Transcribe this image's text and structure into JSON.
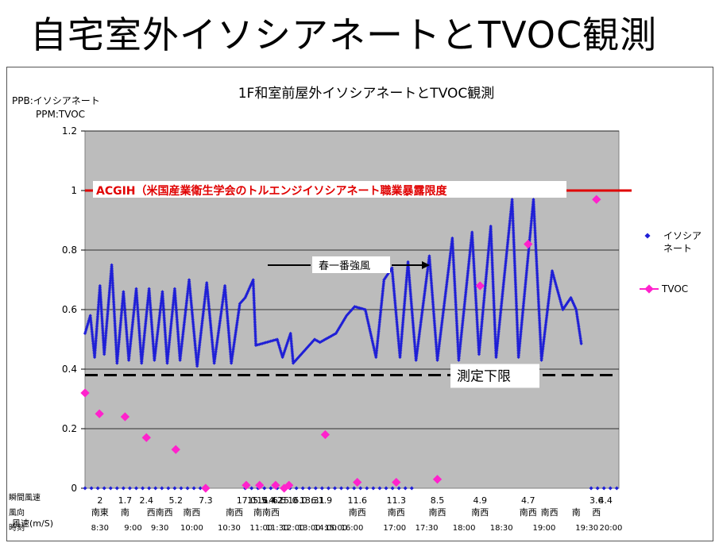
{
  "slide": {
    "title": "自宅室外イソシアネートとTVOC観測"
  },
  "chart_data": {
    "type": "scatter",
    "title": "1F和室前屋外イソシアネートとTVOC観測",
    "ylabel_line1": "PPB:イソシアネート",
    "ylabel_line2": "PPM:TVOC",
    "ylim": [
      0,
      1.2
    ],
    "yticks": [
      "0",
      "0.2",
      "0.4",
      "0.6",
      "0.8",
      "1",
      "1.2"
    ],
    "grid": true,
    "legend_position": "right",
    "series": [
      {
        "name": "イソシアネート",
        "color": "#1f1fd6",
        "marker": "diamond-small",
        "id": "iso"
      },
      {
        "name": "TVOC",
        "color": "#ff22cc",
        "marker": "diamond-line",
        "id": "tvoc"
      }
    ],
    "tvoc_points": [
      {
        "x": 0.0,
        "y": 0.32
      },
      {
        "x": 0.027,
        "y": 0.25
      },
      {
        "x": 0.075,
        "y": 0.24
      },
      {
        "x": 0.115,
        "y": 0.17
      },
      {
        "x": 0.17,
        "y": 0.13
      },
      {
        "x": 0.226,
        "y": 0.0
      },
      {
        "x": 0.302,
        "y": 0.01
      },
      {
        "x": 0.327,
        "y": 0.01
      },
      {
        "x": 0.357,
        "y": 0.01
      },
      {
        "x": 0.373,
        "y": 0.0
      },
      {
        "x": 0.382,
        "y": 0.01
      },
      {
        "x": 0.45,
        "y": 0.18
      },
      {
        "x": 0.51,
        "y": 0.02
      },
      {
        "x": 0.583,
        "y": 0.02
      },
      {
        "x": 0.66,
        "y": 0.03
      },
      {
        "x": 0.74,
        "y": 0.68
      },
      {
        "x": 0.83,
        "y": 0.82
      },
      {
        "x": 0.958,
        "y": 0.97
      }
    ],
    "iso_profile": [
      {
        "x": 0.0,
        "y": 0.52
      },
      {
        "x": 0.01,
        "y": 0.58
      },
      {
        "x": 0.018,
        "y": 0.44
      },
      {
        "x": 0.028,
        "y": 0.68
      },
      {
        "x": 0.036,
        "y": 0.45
      },
      {
        "x": 0.05,
        "y": 0.75
      },
      {
        "x": 0.06,
        "y": 0.42
      },
      {
        "x": 0.072,
        "y": 0.66
      },
      {
        "x": 0.082,
        "y": 0.43
      },
      {
        "x": 0.096,
        "y": 0.67
      },
      {
        "x": 0.106,
        "y": 0.42
      },
      {
        "x": 0.12,
        "y": 0.67
      },
      {
        "x": 0.13,
        "y": 0.43
      },
      {
        "x": 0.145,
        "y": 0.66
      },
      {
        "x": 0.154,
        "y": 0.42
      },
      {
        "x": 0.168,
        "y": 0.67
      },
      {
        "x": 0.178,
        "y": 0.43
      },
      {
        "x": 0.195,
        "y": 0.7
      },
      {
        "x": 0.21,
        "y": 0.41
      },
      {
        "x": 0.228,
        "y": 0.69
      },
      {
        "x": 0.242,
        "y": 0.42
      },
      {
        "x": 0.262,
        "y": 0.68
      },
      {
        "x": 0.274,
        "y": 0.42
      },
      {
        "x": 0.29,
        "y": 0.62
      },
      {
        "x": 0.3,
        "y": 0.64
      },
      {
        "x": 0.315,
        "y": 0.7
      },
      {
        "x": 0.32,
        "y": 0.48
      },
      {
        "x": 0.36,
        "y": 0.5
      },
      {
        "x": 0.37,
        "y": 0.44
      },
      {
        "x": 0.385,
        "y": 0.52
      },
      {
        "x": 0.39,
        "y": 0.42
      },
      {
        "x": 0.43,
        "y": 0.5
      },
      {
        "x": 0.44,
        "y": 0.49
      },
      {
        "x": 0.47,
        "y": 0.52
      },
      {
        "x": 0.49,
        "y": 0.58
      },
      {
        "x": 0.505,
        "y": 0.61
      },
      {
        "x": 0.525,
        "y": 0.6
      },
      {
        "x": 0.545,
        "y": 0.44
      },
      {
        "x": 0.56,
        "y": 0.7
      },
      {
        "x": 0.575,
        "y": 0.74
      },
      {
        "x": 0.59,
        "y": 0.44
      },
      {
        "x": 0.605,
        "y": 0.76
      },
      {
        "x": 0.62,
        "y": 0.43
      },
      {
        "x": 0.645,
        "y": 0.78
      },
      {
        "x": 0.66,
        "y": 0.43
      },
      {
        "x": 0.688,
        "y": 0.84
      },
      {
        "x": 0.7,
        "y": 0.43
      },
      {
        "x": 0.725,
        "y": 0.86
      },
      {
        "x": 0.738,
        "y": 0.45
      },
      {
        "x": 0.76,
        "y": 0.88
      },
      {
        "x": 0.77,
        "y": 0.44
      },
      {
        "x": 0.8,
        "y": 0.97
      },
      {
        "x": 0.812,
        "y": 0.44
      },
      {
        "x": 0.84,
        "y": 0.97
      },
      {
        "x": 0.855,
        "y": 0.43
      },
      {
        "x": 0.875,
        "y": 0.73
      },
      {
        "x": 0.895,
        "y": 0.6
      },
      {
        "x": 0.91,
        "y": 0.64
      },
      {
        "x": 0.92,
        "y": 0.6
      },
      {
        "x": 0.93,
        "y": 0.48
      }
    ],
    "lines": {
      "acgih": {
        "value": 1.0,
        "label": "ACGIH（米国産業衛生学会のトルエンジイソシアネート職業暴露限度"
      },
      "detection_limit": {
        "value": 0.38,
        "label": "測定下限"
      }
    },
    "annotations": {
      "spring_wind": "春一番強風"
    },
    "x_rows": {
      "row1_label": "瞬間風速",
      "row1_values": [
        "2",
        "1.7",
        "2.4",
        "5.2",
        "7.3",
        "17.0",
        "15.5",
        "16.4",
        "14.2",
        "6.5",
        "15.0",
        "16.0",
        "13.3",
        "6.1",
        "1.9",
        "11.6",
        "11.3",
        "8.5",
        "4.9",
        "4.7",
        "3.6",
        "4.4"
      ],
      "row2_label": "風向",
      "row2_values": [
        "南東",
        "南",
        "西南西",
        "南西",
        "南西",
        "南南西",
        "南西",
        "南西",
        "南西",
        "南西",
        "南西",
        "南西",
        "南",
        "西"
      ],
      "row3_label": "時刻",
      "row3_values": [
        "8:30",
        "9:00",
        "9:30",
        "10:00",
        "10:30",
        "11:00",
        "11:30",
        "12:00",
        "13:00",
        "14:00",
        "15:00",
        "16:00",
        "17:00",
        "17:30",
        "18:00",
        "18:30",
        "19:00",
        "19:30",
        "20:00"
      ],
      "wind_speed_label": "風速(m/S)"
    }
  }
}
